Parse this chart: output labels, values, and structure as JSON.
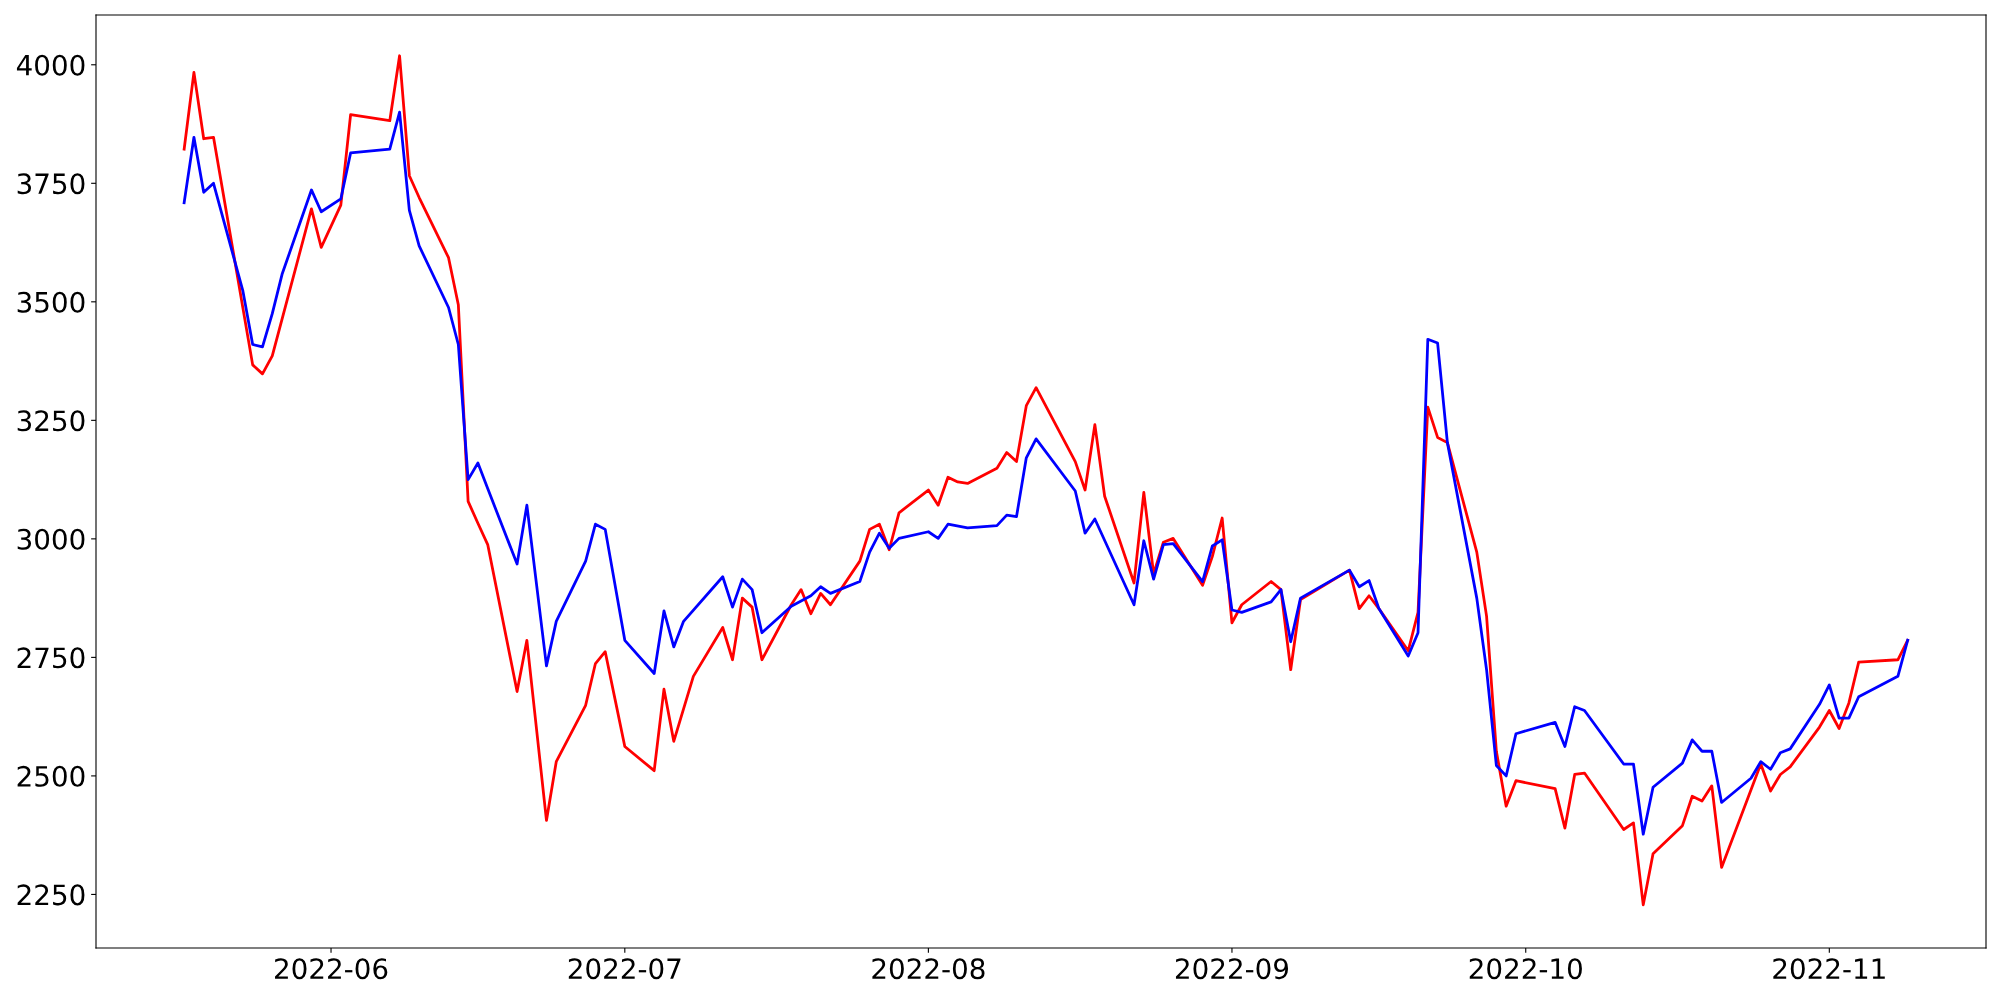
{
  "chart_data": {
    "type": "line",
    "series": [
      {
        "color": "#ff0000",
        "x": [
          "2022-05-17",
          "2022-05-18",
          "2022-05-19",
          "2022-05-20",
          "2022-05-24",
          "2022-05-25",
          "2022-05-26",
          "2022-05-30",
          "2022-05-31",
          "2022-06-02",
          "2022-06-03",
          "2022-06-07",
          "2022-06-08",
          "2022-06-09",
          "2022-06-10",
          "2022-06-13",
          "2022-06-14",
          "2022-06-15",
          "2022-06-16",
          "2022-06-17",
          "2022-06-20",
          "2022-06-21",
          "2022-06-23",
          "2022-06-24",
          "2022-06-27",
          "2022-06-28",
          "2022-06-29",
          "2022-06-30",
          "2022-07-01",
          "2022-07-04",
          "2022-07-05",
          "2022-07-06",
          "2022-07-08",
          "2022-07-11",
          "2022-07-12",
          "2022-07-13",
          "2022-07-14",
          "2022-07-15",
          "2022-07-18",
          "2022-07-19",
          "2022-07-20",
          "2022-07-21",
          "2022-07-22",
          "2022-07-25",
          "2022-07-26",
          "2022-07-27",
          "2022-07-28",
          "2022-07-29",
          "2022-08-01",
          "2022-08-02",
          "2022-08-03",
          "2022-08-04",
          "2022-08-05",
          "2022-08-08",
          "2022-08-09",
          "2022-08-10",
          "2022-08-11",
          "2022-08-12",
          "2022-08-16",
          "2022-08-17",
          "2022-08-18",
          "2022-08-19",
          "2022-08-22",
          "2022-08-23",
          "2022-08-24",
          "2022-08-25",
          "2022-08-26",
          "2022-08-29",
          "2022-08-30",
          "2022-08-31",
          "2022-09-01",
          "2022-09-02",
          "2022-09-05",
          "2022-09-06",
          "2022-09-07",
          "2022-09-08",
          "2022-09-13",
          "2022-09-14",
          "2022-09-15",
          "2022-09-16",
          "2022-09-19",
          "2022-09-20",
          "2022-09-21",
          "2022-09-22",
          "2022-09-23",
          "2022-09-26",
          "2022-09-27",
          "2022-09-28",
          "2022-09-29",
          "2022-09-30",
          "2022-10-04",
          "2022-10-05",
          "2022-10-06",
          "2022-10-07",
          "2022-10-11",
          "2022-10-12",
          "2022-10-13",
          "2022-10-14",
          "2022-10-17",
          "2022-10-18",
          "2022-10-19",
          "2022-10-20",
          "2022-10-21",
          "2022-10-25",
          "2022-10-26",
          "2022-10-27",
          "2022-10-28",
          "2022-10-31",
          "2022-11-01",
          "2022-11-02",
          "2022-11-03",
          "2022-11-04",
          "2022-11-08",
          "2022-11-09"
        ],
        "values": [
          3822,
          3984,
          3844,
          3847,
          3367,
          3348,
          3386,
          3696,
          3615,
          3704,
          3895,
          3882,
          4019,
          3766,
          3720,
          3593,
          3494,
          3079,
          3033,
          2988,
          2678,
          2786,
          2406,
          2530,
          2649,
          2737,
          2762,
          2662,
          2562,
          2511,
          2683,
          2573,
          2710,
          2813,
          2745,
          2875,
          2856,
          2745,
          2861,
          2893,
          2842,
          2885,
          2861,
          2953,
          3020,
          3031,
          2977,
          3055,
          3103,
          3071,
          3130,
          3120,
          3117,
          3149,
          3182,
          3163,
          3281,
          3319,
          3163,
          3103,
          3241,
          3090,
          2907,
          3098,
          2926,
          2993,
          3001,
          2902,
          2963,
          3044,
          2823,
          2861,
          2910,
          2893,
          2724,
          2872,
          2934,
          2853,
          2880,
          2853,
          2764,
          2845,
          3278,
          3214,
          3203,
          2972,
          2837,
          2552,
          2436,
          2490,
          2473,
          2390,
          2503,
          2506,
          2387,
          2401,
          2228,
          2336,
          2395,
          2457,
          2447,
          2479,
          2307,
          2525,
          2468,
          2503,
          2519,
          2603,
          2638,
          2600,
          2654,
          2740,
          2745,
          2786
        ]
      },
      {
        "color": "#0000ff",
        "x": [
          "2022-05-17",
          "2022-05-18",
          "2022-05-19",
          "2022-05-20",
          "2022-05-23",
          "2022-05-24",
          "2022-05-25",
          "2022-05-26",
          "2022-05-27",
          "2022-05-30",
          "2022-05-31",
          "2022-06-02",
          "2022-06-03",
          "2022-06-07",
          "2022-06-08",
          "2022-06-09",
          "2022-06-10",
          "2022-06-13",
          "2022-06-14",
          "2022-06-15",
          "2022-06-16",
          "2022-06-17",
          "2022-06-20",
          "2022-06-21",
          "2022-06-23",
          "2022-06-24",
          "2022-06-27",
          "2022-06-28",
          "2022-06-29",
          "2022-07-01",
          "2022-07-04",
          "2022-07-05",
          "2022-07-06",
          "2022-07-07",
          "2022-07-11",
          "2022-07-12",
          "2022-07-13",
          "2022-07-14",
          "2022-07-15",
          "2022-07-18",
          "2022-07-19",
          "2022-07-20",
          "2022-07-21",
          "2022-07-22",
          "2022-07-25",
          "2022-07-26",
          "2022-07-27",
          "2022-07-28",
          "2022-07-29",
          "2022-08-01",
          "2022-08-02",
          "2022-08-03",
          "2022-08-05",
          "2022-08-08",
          "2022-08-09",
          "2022-08-10",
          "2022-08-11",
          "2022-08-12",
          "2022-08-16",
          "2022-08-17",
          "2022-08-18",
          "2022-08-22",
          "2022-08-23",
          "2022-08-24",
          "2022-08-25",
          "2022-08-26",
          "2022-08-29",
          "2022-08-30",
          "2022-08-31",
          "2022-09-01",
          "2022-09-02",
          "2022-09-05",
          "2022-09-06",
          "2022-09-07",
          "2022-09-08",
          "2022-09-13",
          "2022-09-14",
          "2022-09-15",
          "2022-09-16",
          "2022-09-19",
          "2022-09-20",
          "2022-09-21",
          "2022-09-22",
          "2022-09-23",
          "2022-09-26",
          "2022-09-27",
          "2022-09-28",
          "2022-09-29",
          "2022-09-30",
          "2022-10-04",
          "2022-10-05",
          "2022-10-06",
          "2022-10-07",
          "2022-10-11",
          "2022-10-12",
          "2022-10-13",
          "2022-10-14",
          "2022-10-17",
          "2022-10-18",
          "2022-10-19",
          "2022-10-20",
          "2022-10-21",
          "2022-10-24",
          "2022-10-25",
          "2022-10-26",
          "2022-10-27",
          "2022-10-28",
          "2022-10-31",
          "2022-11-01",
          "2022-11-02",
          "2022-11-03",
          "2022-11-04",
          "2022-11-08",
          "2022-11-09"
        ],
        "values": [
          3709,
          3847,
          3731,
          3750,
          3523,
          3410,
          3405,
          3475,
          3558,
          3736,
          3690,
          3717,
          3814,
          3822,
          3900,
          3693,
          3618,
          3488,
          3410,
          3125,
          3160,
          3106,
          2947,
          3071,
          2732,
          2826,
          2953,
          3031,
          3020,
          2786,
          2716,
          2848,
          2772,
          2826,
          2920,
          2856,
          2915,
          2893,
          2802,
          2858,
          2869,
          2880,
          2899,
          2885,
          2910,
          2972,
          3012,
          2980,
          3001,
          3015,
          3001,
          3031,
          3023,
          3028,
          3050,
          3047,
          3171,
          3211,
          3101,
          3012,
          3042,
          2861,
          2996,
          2915,
          2988,
          2990,
          2910,
          2985,
          2998,
          2850,
          2845,
          2867,
          2893,
          2783,
          2875,
          2934,
          2899,
          2912,
          2853,
          2753,
          2802,
          3421,
          3413,
          3203,
          2875,
          2724,
          2522,
          2500,
          2589,
          2613,
          2562,
          2646,
          2638,
          2525,
          2525,
          2377,
          2476,
          2527,
          2576,
          2552,
          2552,
          2444,
          2495,
          2530,
          2514,
          2549,
          2557,
          2651,
          2692,
          2622,
          2622,
          2667,
          2710,
          2786
        ]
      }
    ],
    "xlim": [
      "2022-05-08",
      "2022-11-17"
    ],
    "xticks": [
      {
        "value": "2022-06-01",
        "label": "2022-06"
      },
      {
        "value": "2022-07-01",
        "label": "2022-07"
      },
      {
        "value": "2022-08-01",
        "label": "2022-08"
      },
      {
        "value": "2022-09-01",
        "label": "2022-09"
      },
      {
        "value": "2022-10-01",
        "label": "2022-10"
      },
      {
        "value": "2022-11-01",
        "label": "2022-11"
      }
    ],
    "ylim": [
      2137,
      4105
    ],
    "yticks": [
      2250,
      2500,
      2750,
      3000,
      3250,
      3500,
      3750,
      4000
    ],
    "grid": false,
    "legend": false
  }
}
